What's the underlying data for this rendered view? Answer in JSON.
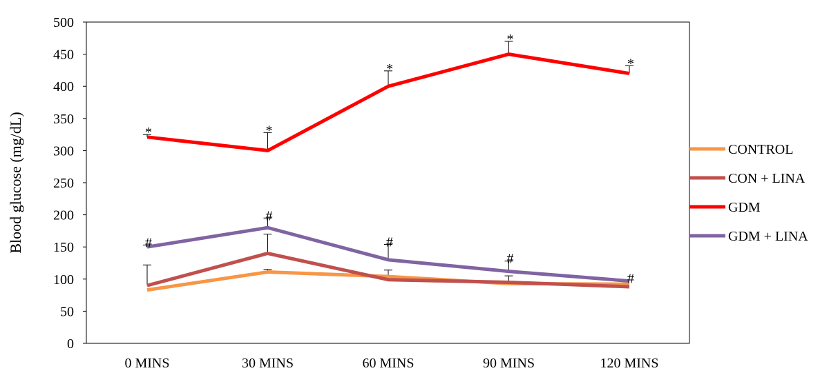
{
  "chart_data": {
    "type": "line",
    "title": "",
    "xlabel": "",
    "ylabel": "Blood glucose (mg/dL)",
    "ylim": [
      0,
      500
    ],
    "ytick_step": 50,
    "categories": [
      "0 MINS",
      "30 MINS",
      "60 MINS",
      "90 MINS",
      "120 MINS"
    ],
    "legend_position": "right",
    "grid": false,
    "series": [
      {
        "name": "CONTROL",
        "color": "#f79646",
        "values": [
          83,
          111,
          104,
          93,
          92
        ],
        "error": [
          0,
          4,
          0,
          0,
          0
        ],
        "marks": [
          "",
          "",
          "",
          "",
          ""
        ]
      },
      {
        "name": "CON + LINA",
        "color": "#c0504d",
        "values": [
          90,
          140,
          99,
          95,
          88
        ],
        "error": [
          32,
          30,
          15,
          10,
          0
        ],
        "marks": [
          "",
          "",
          "",
          "",
          ""
        ]
      },
      {
        "name": "GDM",
        "color": "#ff0000",
        "values": [
          321,
          300,
          400,
          450,
          420
        ],
        "error": [
          4,
          28,
          24,
          20,
          12
        ],
        "marks": [
          "*",
          "*",
          "*",
          "*",
          "*"
        ]
      },
      {
        "name": "GDM + LINA",
        "color": "#8064a2",
        "values": [
          150,
          180,
          130,
          112,
          97
        ],
        "error": [
          3,
          15,
          24,
          16,
          0
        ],
        "marks": [
          "#",
          "#",
          "#",
          "#",
          "#"
        ]
      }
    ]
  }
}
